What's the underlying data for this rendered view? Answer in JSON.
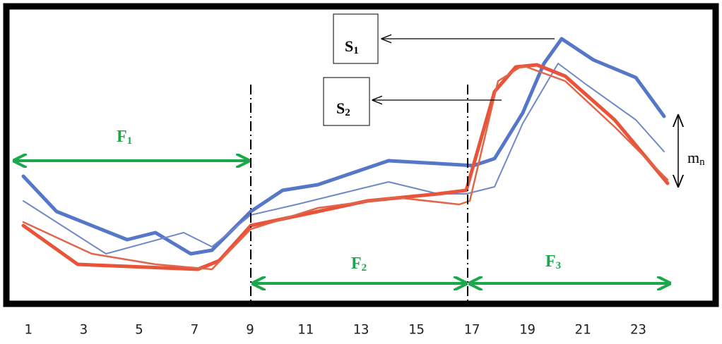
{
  "labels": {
    "f1": {
      "text": "F",
      "sub": "1"
    },
    "f2": {
      "text": "F",
      "sub": "2"
    },
    "f3": {
      "text": "F",
      "sub": "3"
    },
    "s1": {
      "text": "S",
      "sub": "1"
    },
    "s2": {
      "text": "S",
      "sub": "2"
    },
    "mn": {
      "text": "m",
      "sub": "n"
    }
  },
  "x_axis": {
    "ticks": [
      "1",
      "3",
      "5",
      "7",
      "9",
      "11",
      "13",
      "15",
      "17",
      "19",
      "21",
      "23"
    ]
  }
}
